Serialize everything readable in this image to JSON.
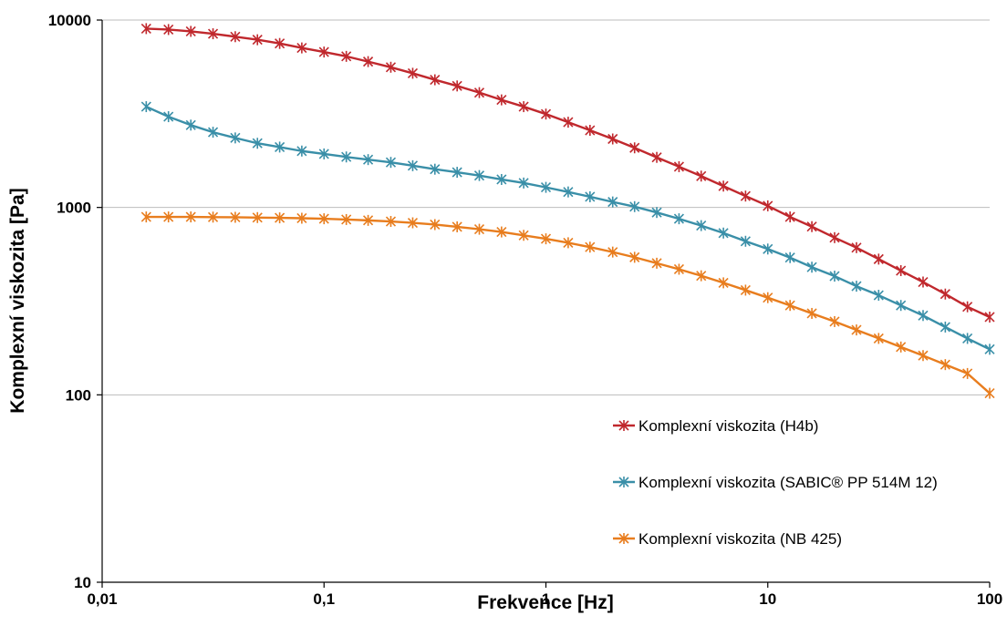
{
  "chart_data": {
    "type": "line",
    "xlabel": "Frekvence [Hz]",
    "ylabel": "Komplexní viskozita [Pa]",
    "x_scale": "log",
    "y_scale": "log",
    "xlim": [
      0.01,
      100
    ],
    "ylim": [
      10,
      10000
    ],
    "x_ticks": [
      0.01,
      0.1,
      1,
      10,
      100
    ],
    "x_tick_labels": [
      "0,01",
      "0,1",
      "1",
      "10",
      "100"
    ],
    "y_ticks": [
      10,
      100,
      1000,
      10000
    ],
    "y_tick_labels": [
      "10",
      "100",
      "1000",
      "10000"
    ],
    "grid": "horizontal major lines",
    "legend_position": "bottom-right, inside plot",
    "marker": "asterisk",
    "x": [
      0.0158,
      0.0199,
      0.0251,
      0.0316,
      0.0398,
      0.0501,
      0.0631,
      0.0794,
      0.1,
      0.126,
      0.158,
      0.2,
      0.251,
      0.316,
      0.398,
      0.501,
      0.631,
      0.794,
      1,
      1.26,
      1.58,
      2,
      2.51,
      3.16,
      3.98,
      5.01,
      6.31,
      7.94,
      10,
      12.6,
      15.8,
      20,
      25.1,
      31.6,
      39.8,
      50.1,
      63.1,
      79.4,
      100
    ],
    "series": [
      {
        "name": "Komplexní viskozita (H4b)",
        "color": "#C0282D",
        "values": [
          9000,
          8900,
          8700,
          8450,
          8150,
          7850,
          7500,
          7100,
          6750,
          6400,
          6000,
          5600,
          5200,
          4800,
          4450,
          4100,
          3750,
          3450,
          3150,
          2850,
          2580,
          2320,
          2080,
          1850,
          1650,
          1470,
          1300,
          1150,
          1020,
          890,
          790,
          690,
          610,
          530,
          460,
          400,
          345,
          295,
          260
        ]
      },
      {
        "name": "Komplexní viskozita (SABIC® PP 514M 12)",
        "color": "#3A8FA8",
        "values": [
          3450,
          3050,
          2750,
          2520,
          2350,
          2200,
          2100,
          2000,
          1930,
          1860,
          1800,
          1740,
          1670,
          1600,
          1540,
          1480,
          1410,
          1350,
          1280,
          1210,
          1140,
          1070,
          1010,
          940,
          870,
          800,
          730,
          660,
          600,
          540,
          480,
          430,
          380,
          340,
          300,
          265,
          230,
          200,
          175
        ]
      },
      {
        "name": "Komplexní viskozita (NB 425)",
        "color": "#E87D1E",
        "values": [
          890,
          890,
          890,
          888,
          886,
          883,
          880,
          876,
          870,
          862,
          853,
          842,
          828,
          810,
          788,
          765,
          740,
          710,
          680,
          648,
          614,
          578,
          542,
          504,
          468,
          432,
          396,
          362,
          330,
          300,
          272,
          246,
          222,
          200,
          180,
          162,
          145,
          130,
          102
        ]
      }
    ]
  }
}
